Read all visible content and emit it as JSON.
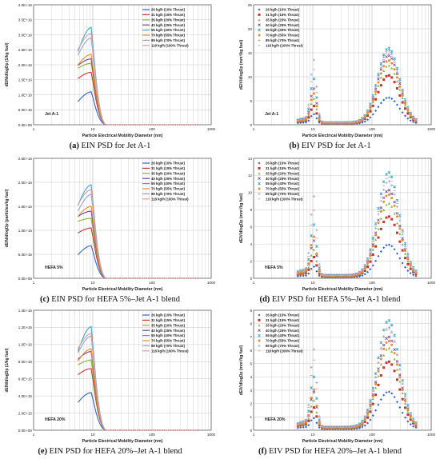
{
  "colors": {
    "s26": "#2f64c9",
    "s31": "#c8352d",
    "s35": "#8bb43c",
    "s40": "#6a479c",
    "s55": "#3fa7c9",
    "s70": "#f08a24",
    "s89": "#8fa6d6",
    "s118": "#d9a1a1",
    "grid": "#c8c8c8",
    "axis": "#555555",
    "text": "#222222"
  },
  "chart_data": [
    {
      "id": "a",
      "type": "line",
      "caption_tag": "(a)",
      "caption_text": "EIN PSD for Jet A-1",
      "panel_label": "Jet A-1",
      "xlabel": "Particle Electrical Mobility Diameter (nm)",
      "ylabel": "dEIN/dlogDp (1/kg fuel)",
      "x_log": true,
      "xlim": [
        1,
        1000
      ],
      "ylim": [
        0,
        4e+16
      ],
      "yticks": [
        "0.0E+00",
        "5.0E+15",
        "1.0E+16",
        "1.5E+16",
        "2.0E+16",
        "2.5E+16",
        "3.0E+16",
        "3.5E+16",
        "4.0E+16"
      ],
      "legend_position": "top-right",
      "legend": [
        "26 kg/h (10% Thrust)",
        "31 kg/h (15% Thrust)",
        "35 kg/h (20% Thrust)",
        "40 kg/h (25% Thrust)",
        "55 kg/h (40% Thrust)",
        "70 kg/h (55% Thrust)",
        "89 kg/h (70% Thrust)",
        "118 kg/h (100% Thrust)"
      ],
      "series_peaks": [
        1.1e+16,
        1.75e+16,
        2.05e+16,
        2.2e+16,
        3.25e+16,
        2.35e+16,
        2.9e+16,
        3.05e+16
      ],
      "series_ratio": [
        0.7,
        0.88,
        0.92,
        0.9,
        0.75,
        0.85,
        0.8,
        0.82
      ]
    },
    {
      "id": "b",
      "type": "scatter",
      "caption_tag": "(b)",
      "caption_text": "EIV PSD for Jet A-1",
      "panel_label": "Jet A-1",
      "xlabel": "Particle Electrical Mobility Diameter (nm)",
      "ylabel": "dEIV/dlogDp (mm³/kg fuel)",
      "x_log": true,
      "xlim": [
        1,
        1000
      ],
      "ylim": [
        0,
        25
      ],
      "yticks": [
        "0",
        "5",
        "10",
        "15",
        "20",
        "25"
      ],
      "legend_position": "top-left",
      "legend": [
        "26 kg/h (10% Thrust)",
        "31 kg/h (15% Thrust)",
        "35 kg/h (20% Thrust)",
        "40 kg/h (25% Thrust)",
        "55 kg/h (40% Thrust)",
        "70 kg/h (55% Thrust)",
        "89 kg/h (70% Thrust)",
        "118 kg/h (100% Thrust)"
      ],
      "series_peaks": [
        5.5,
        10,
        12,
        14,
        15.5,
        13,
        15,
        14.5
      ],
      "series_small": [
        2,
        3.5,
        5,
        7,
        9,
        6,
        13,
        11
      ]
    },
    {
      "id": "c",
      "type": "line",
      "caption_tag": "(c)",
      "caption_text": "EIN PSD for HEFA 5%–Jet A-1 blend",
      "panel_label": "HEFA 5%",
      "xlabel": "Particle Electrical Mobility Diameter (nm)",
      "ylabel": "dEIN/dlogDp (particles/kg fuel)",
      "x_log": true,
      "xlim": [
        1,
        1000
      ],
      "ylim": [
        0,
        2.5e+16
      ],
      "yticks": [
        "0.0E+00",
        "5.0E+15",
        "1.0E+16",
        "1.5E+16",
        "2.0E+16",
        "2.5E+16"
      ],
      "legend_position": "top-right",
      "legend": [
        "26 kg/h (10% Thrust)",
        "31 kg/h (15% Thrust)",
        "35 kg/h (20% Thrust)",
        "40 kg/h (25% Thrust)",
        "55 kg/h (40% Thrust)",
        "70 kg/h (55% Thrust)",
        "89 kg/h (70% Thrust)",
        "118 kg/h (100% Thrust)"
      ],
      "series_peaks": [
        6800000000000000.0,
        1.05e+16,
        1.25e+16,
        1.4e+16,
        1.95e+16,
        1.5e+16,
        1.75e+16,
        1.85e+16
      ],
      "series_ratio": [
        0.72,
        0.9,
        0.95,
        0.92,
        0.78,
        0.86,
        0.8,
        0.83
      ]
    },
    {
      "id": "d",
      "type": "scatter",
      "caption_tag": "(d)",
      "caption_text": "EIV PSD for HEFA 5%–Jet A-1 blend",
      "panel_label": "HEFA 5%",
      "xlabel": "Particle Electrical Mobility Diameter (nm)",
      "ylabel": "dEIV/dlogDp (mm³/kg fuel)",
      "x_log": true,
      "xlim": [
        1,
        1000
      ],
      "ylim": [
        0,
        14
      ],
      "yticks": [
        "0",
        "2",
        "4",
        "6",
        "8",
        "10",
        "12",
        "14"
      ],
      "legend_position": "top-left",
      "legend": [
        "26 kg/h (10% Thrust)",
        "31 kg/h (15% Thrust)",
        "35 kg/h (20% Thrust)",
        "40 kg/h (25% Thrust)",
        "55 kg/h (40% Thrust)",
        "70 kg/h (55% Thrust)",
        "89 kg/h (70% Thrust)",
        "118 kg/h (100% Thrust)"
      ],
      "series_peaks": [
        3.8,
        7,
        8.5,
        10,
        12,
        9.5,
        11,
        11.5
      ],
      "series_small": [
        1.2,
        2.2,
        3,
        4,
        5.8,
        4.5,
        9.2,
        7.5
      ]
    },
    {
      "id": "e",
      "type": "line",
      "caption_tag": "(e)",
      "caption_text": "EIN PSD for HEFA 20%–Jet A-1 blend",
      "panel_label": "HEFA 20%",
      "xlabel": "Particle Electrical Mobility Diameter (nm)",
      "ylabel": "dEIN/dlogDp (1/kg fuel)",
      "x_log": true,
      "xlim": [
        1,
        1000
      ],
      "ylim": [
        0,
        1.4e+16
      ],
      "yticks": [
        "0.0E+00",
        "2.0E+15",
        "4.0E+15",
        "6.0E+15",
        "8.0E+15",
        "1.0E+16",
        "1.2E+16",
        "1.4E+16"
      ],
      "legend_position": "top-right",
      "legend": [
        "26 kg/h (10% Thrust)",
        "31 kg/h (15% Thrust)",
        "35 kg/h (20% Thrust)",
        "40 kg/h (25% Thrust)",
        "55 kg/h (40% Thrust)",
        "70 kg/h (55% Thrust)",
        "89 kg/h (70% Thrust)",
        "118 kg/h (100% Thrust)"
      ],
      "series_peaks": [
        4400000000000000.0,
        7200000000000000.0,
        8200000000000000.0,
        9200000000000000.0,
        1.21e+16,
        9500000000000000.0,
        1.1e+16,
        1.13e+16
      ],
      "series_ratio": [
        0.74,
        0.9,
        0.93,
        0.9,
        0.76,
        0.85,
        0.82,
        0.84
      ]
    },
    {
      "id": "f",
      "type": "scatter",
      "caption_tag": "(f)",
      "caption_text": "EIV PSD for HEFA 20%–Jet A-1 blend",
      "panel_label": "HEFA 20%",
      "xlabel": "Particle Electrical Mobility Diameter (nm)",
      "ylabel": "dEIV/dlogDp (mm³/kg fuel)",
      "x_log": true,
      "xlim": [
        1,
        1000
      ],
      "ylim": [
        0,
        9
      ],
      "yticks": [
        "0",
        "1",
        "2",
        "3",
        "4",
        "5",
        "6",
        "7",
        "8",
        "9"
      ],
      "legend_position": "top-left",
      "legend": [
        "26 kg/h (10% Thrust)",
        "31 kg/h (15% Thrust)",
        "35 kg/h (20% Thrust)",
        "40 kg/h (25% Thrust)",
        "55 kg/h (40% Thrust)",
        "70 kg/h (55% Thrust)",
        "89 kg/h (70% Thrust)",
        "118 kg/h (100% Thrust)"
      ],
      "series_peaks": [
        2.8,
        5,
        6,
        6.8,
        8,
        6.5,
        7.5,
        7.4
      ],
      "series_small": [
        0.8,
        1.5,
        2,
        2.6,
        3.7,
        2.8,
        5.8,
        5
      ]
    }
  ]
}
